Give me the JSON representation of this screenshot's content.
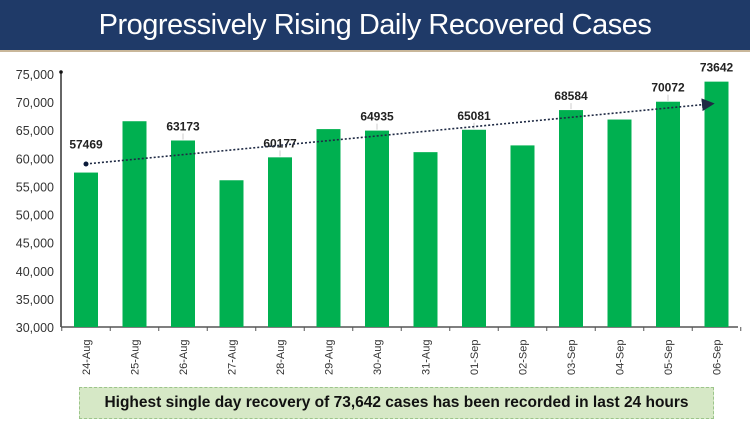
{
  "chart_data": {
    "type": "bar",
    "title": "Progressively Rising Daily Recovered Cases",
    "xlabel": "",
    "ylabel": "",
    "ylim": [
      30000,
      75000
    ],
    "yticks": [
      "30,000",
      "35,000",
      "40,000",
      "45,000",
      "50,000",
      "55,000",
      "60,000",
      "65,000",
      "70,000",
      "75,000"
    ],
    "categories": [
      "24-Aug",
      "25-Aug",
      "26-Aug",
      "27-Aug",
      "28-Aug",
      "29-Aug",
      "30-Aug",
      "31-Aug",
      "01-Sep",
      "02-Sep",
      "03-Sep",
      "04-Sep",
      "05-Sep",
      "06-Sep"
    ],
    "values": [
      57469,
      66600,
      63173,
      56100,
      60177,
      65200,
      64935,
      61100,
      65081,
      62300,
      68584,
      66900,
      70072,
      73642
    ],
    "data_labels": [
      "57469",
      null,
      "63173",
      null,
      "60177",
      null,
      "64935",
      null,
      "65081",
      null,
      "68584",
      null,
      "70072",
      "73642"
    ],
    "bar_color": "#00b050",
    "trend_line": {
      "style": "dotted arrow",
      "start": [
        0,
        59000
      ],
      "end": [
        13,
        69700
      ]
    },
    "grid": false,
    "legend": "none"
  },
  "footer_note": "Highest single day recovery of 73,642 cases has been recorded in last 24 hours"
}
